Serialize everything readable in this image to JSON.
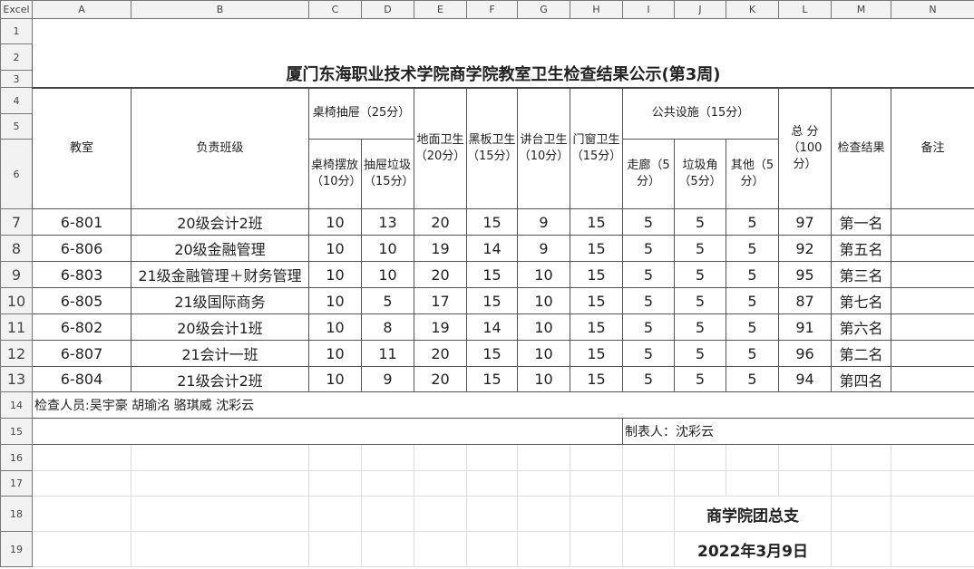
{
  "sheet": {
    "corner_label": "Excel",
    "columns": [
      "A",
      "B",
      "C",
      "D",
      "E",
      "F",
      "G",
      "H",
      "I",
      "J",
      "K",
      "L",
      "M",
      "N"
    ],
    "rows": [
      "1",
      "2",
      "3",
      "4",
      "5",
      "6",
      "7",
      "8",
      "9",
      "10",
      "11",
      "12",
      "13",
      "14",
      "15",
      "16",
      "17",
      "18",
      "19"
    ]
  },
  "title": "厦门东海职业技术学院商学院教室卫生检查结果公示(第3周)",
  "headers": {
    "classroom": "教室",
    "class": "负责班级",
    "desk_group": "桌椅抽屉（25分）",
    "desk_arrange": "桌椅摆放（10分）",
    "drawer_trash": "抽屉垃圾（15分）",
    "floor": "地面卫生（20分）",
    "blackboard": "黑板卫生（15分）",
    "podium": "讲台卫生（10分）",
    "doors_windows": "门窗卫生（15分）",
    "public_group": "公共设施（15分）",
    "corridor": "走廊（5分）",
    "trash_corner": "垃圾角（5分）",
    "other": "其他（5分）",
    "total": "总 分（100分）",
    "result": "检查结果",
    "remarks": "备注"
  },
  "records": [
    [
      "6-801",
      "20级会计2班",
      "10",
      "13",
      "20",
      "15",
      "9",
      "15",
      "5",
      "5",
      "5",
      "97",
      "第一名",
      ""
    ],
    [
      "6-806",
      "20级金融管理",
      "10",
      "10",
      "19",
      "14",
      "9",
      "15",
      "5",
      "5",
      "5",
      "92",
      "第五名",
      ""
    ],
    [
      "6-803",
      "21级金融管理＋财务管理",
      "10",
      "10",
      "20",
      "15",
      "10",
      "15",
      "5",
      "5",
      "5",
      "95",
      "第三名",
      ""
    ],
    [
      "6-805",
      "21级国际商务",
      "10",
      "5",
      "17",
      "15",
      "10",
      "15",
      "5",
      "5",
      "5",
      "87",
      "第七名",
      ""
    ],
    [
      "6-802",
      "20级会计1班",
      "10",
      "8",
      "19",
      "14",
      "10",
      "15",
      "5",
      "5",
      "5",
      "91",
      "第六名",
      ""
    ],
    [
      "6-807",
      "21会计一班",
      "10",
      "11",
      "20",
      "15",
      "10",
      "15",
      "5",
      "5",
      "5",
      "96",
      "第二名",
      ""
    ],
    [
      "6-804",
      "21级会计2班",
      "10",
      "9",
      "20",
      "15",
      "10",
      "15",
      "5",
      "5",
      "5",
      "94",
      "第四名",
      ""
    ]
  ],
  "inspectors": "检查人员:吴宇豪 胡瑜洺 骆琪威 沈彩云",
  "preparer": "制表人：沈彩云",
  "signature_org": "商学院团总支",
  "signature_date": "2022年3月9日"
}
